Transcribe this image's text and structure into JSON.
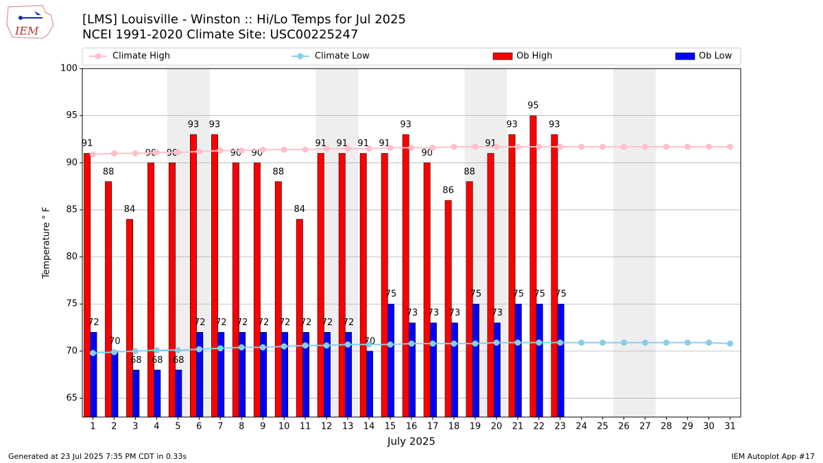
{
  "chart_data": {
    "type": "bar_line",
    "title": "[LMS] Louisville - Winston :: Hi/Lo Temps for Jul 2025",
    "subtitle": "NCEI 1991-2020 Climate Site: USC00225247",
    "x_label": "July 2025",
    "y_label": "Temperature ° F",
    "x": [
      1,
      2,
      3,
      4,
      5,
      6,
      7,
      8,
      9,
      10,
      11,
      12,
      13,
      14,
      15,
      16,
      17,
      18,
      19,
      20,
      21,
      22,
      23,
      24,
      25,
      26,
      27,
      28,
      29,
      30,
      31
    ],
    "xlim": [
      0.5,
      31.5
    ],
    "ylim": [
      63,
      100
    ],
    "yticks": [
      65,
      70,
      75,
      80,
      85,
      90,
      95,
      100
    ],
    "grid": true,
    "shaded_spans": [
      [
        5,
        6
      ],
      [
        12,
        13
      ],
      [
        19,
        20
      ],
      [
        26,
        27
      ]
    ],
    "shade_color": "#eeeeee",
    "series": [
      {
        "name": "Climate High",
        "kind": "line",
        "color": "#ffc0cb",
        "values": [
          90.9,
          91.0,
          91.0,
          91.1,
          91.1,
          91.2,
          91.3,
          91.3,
          91.4,
          91.4,
          91.4,
          91.5,
          91.5,
          91.5,
          91.6,
          91.6,
          91.6,
          91.7,
          91.7,
          91.7,
          91.7,
          91.7,
          91.7,
          91.7,
          91.7,
          91.7,
          91.7,
          91.7,
          91.7,
          91.7,
          91.7
        ]
      },
      {
        "name": "Climate Low",
        "kind": "line",
        "color": "#87ceeb",
        "values": [
          69.8,
          69.9,
          70.0,
          70.1,
          70.1,
          70.2,
          70.3,
          70.4,
          70.4,
          70.5,
          70.6,
          70.6,
          70.7,
          70.7,
          70.7,
          70.8,
          70.8,
          70.8,
          70.8,
          70.9,
          70.9,
          70.9,
          70.9,
          70.9,
          70.9,
          70.9,
          70.9,
          70.9,
          70.9,
          70.9,
          70.8
        ]
      },
      {
        "name": "Ob High",
        "kind": "bar",
        "color": "#ff0000",
        "values": [
          91,
          88,
          84,
          90,
          90,
          93,
          93,
          90,
          90,
          88,
          84,
          91,
          91,
          91,
          91,
          93,
          90,
          86,
          88,
          91,
          93,
          95,
          93,
          null,
          null,
          null,
          null,
          null,
          null,
          null,
          null
        ]
      },
      {
        "name": "Ob Low",
        "kind": "bar",
        "color": "#0000ff",
        "values": [
          72,
          70,
          68,
          68,
          68,
          72,
          72,
          72,
          72,
          72,
          72,
          72,
          72,
          70,
          75,
          73,
          73,
          73,
          75,
          73,
          75,
          75,
          75,
          null,
          null,
          null,
          null,
          null,
          null,
          null,
          null
        ]
      }
    ]
  },
  "logo_text": "IEM",
  "footer_left": "Generated at 23 Jul 2025 7:35 PM CDT in 0.33s",
  "footer_right": "IEM Autoplot App #17"
}
